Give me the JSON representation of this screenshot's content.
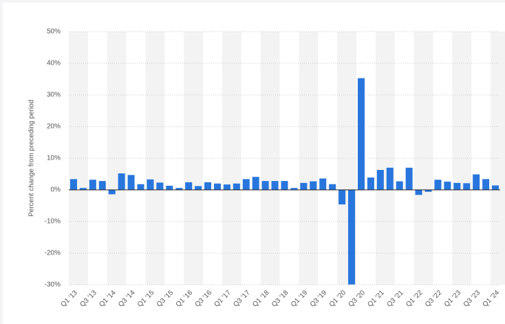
{
  "chart_data": {
    "type": "bar",
    "y_label": "Percent change from preceding period",
    "categories": [
      "Q1 '13",
      null,
      "Q3 '13",
      null,
      "Q1 '14",
      null,
      "Q3 '14",
      null,
      "Q1 '15",
      null,
      "Q3 '15",
      null,
      "Q1 '16",
      null,
      "Q3 '16",
      null,
      "Q1 '17",
      null,
      "Q3 '17",
      null,
      "Q1 '18",
      null,
      "Q3 '18",
      null,
      "Q1 '19",
      null,
      "Q3 '19",
      null,
      "Q1 '20",
      null,
      "Q3 '20",
      null,
      "Q1 '21",
      null,
      "Q3 '21",
      null,
      "Q1 '22",
      null,
      "Q3 '22",
      null,
      "Q1 '23",
      null,
      "Q3 '23",
      null,
      "Q1 '24"
    ],
    "values": [
      3.4,
      0.6,
      3.2,
      2.8,
      -1.4,
      5.2,
      4.7,
      1.8,
      3.3,
      2.3,
      1.3,
      0.6,
      2.4,
      1.2,
      2.4,
      2.0,
      1.7,
      2.0,
      3.4,
      4.1,
      2.8,
      2.8,
      2.8,
      0.6,
      2.2,
      2.7,
      3.6,
      1.8,
      -4.6,
      -29.9,
      35.3,
      3.9,
      6.3,
      7.0,
      2.7,
      7.0,
      -1.6,
      -0.6,
      3.2,
      2.6,
      2.2,
      2.1,
      4.9,
      3.4,
      1.4
    ],
    "color": "#2876dd",
    "ylim": [
      -30,
      50
    ],
    "yticks": [
      {
        "value": -30,
        "label": "-30%"
      },
      {
        "value": -20,
        "label": "-20%"
      },
      {
        "value": -10,
        "label": "-10%"
      },
      {
        "value": 0,
        "label": "0%"
      },
      {
        "value": 10,
        "label": "10%"
      },
      {
        "value": 20,
        "label": "20%"
      },
      {
        "value": 30,
        "label": "30%"
      },
      {
        "value": 40,
        "label": "40%"
      },
      {
        "value": 50,
        "label": "50%"
      }
    ],
    "grid": true
  }
}
